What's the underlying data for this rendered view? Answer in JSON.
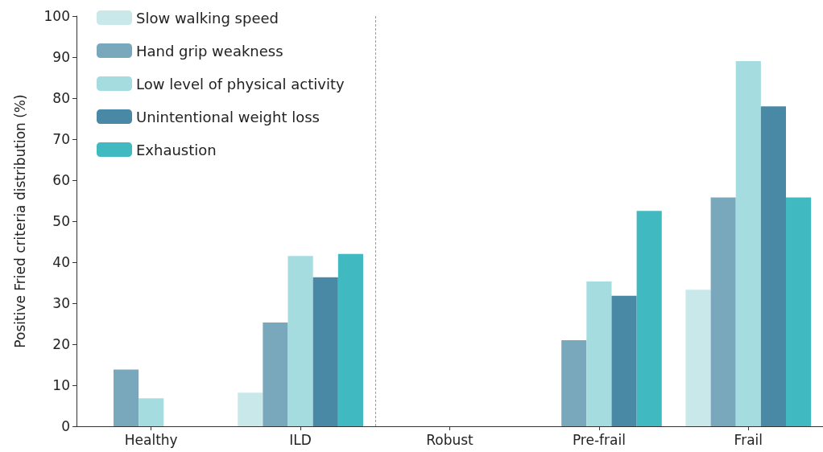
{
  "chart_data": {
    "type": "bar",
    "ylabel": "Positive Fried criteria distribution (%)",
    "categories": [
      "Healthy",
      "ILD",
      "Robust",
      "Pre-frail",
      "Frail"
    ],
    "series": [
      {
        "name": "Slow walking speed",
        "color": "#c8e8ea",
        "values": [
          0,
          8.2,
          0,
          0,
          33.3
        ]
      },
      {
        "name": "Hand grip weakness",
        "color": "#79a7bb",
        "values": [
          13.8,
          25.3,
          0,
          21,
          55.8
        ]
      },
      {
        "name": "Low level of physical activity",
        "color": "#a5dce0",
        "values": [
          6.8,
          41.5,
          0,
          35.3,
          89
        ]
      },
      {
        "name": "Unintentional weight loss",
        "color": "#4a89a5",
        "values": [
          0,
          36.3,
          0,
          31.8,
          78
        ]
      },
      {
        "name": "Exhaustion",
        "color": "#40b9c1",
        "values": [
          0,
          42,
          0,
          52.5,
          55.8
        ]
      }
    ],
    "ylim": [
      0,
      100
    ],
    "yticks": [
      0,
      10,
      20,
      30,
      40,
      50,
      60,
      70,
      80,
      90,
      100
    ],
    "grid": false,
    "legend": "top left"
  }
}
